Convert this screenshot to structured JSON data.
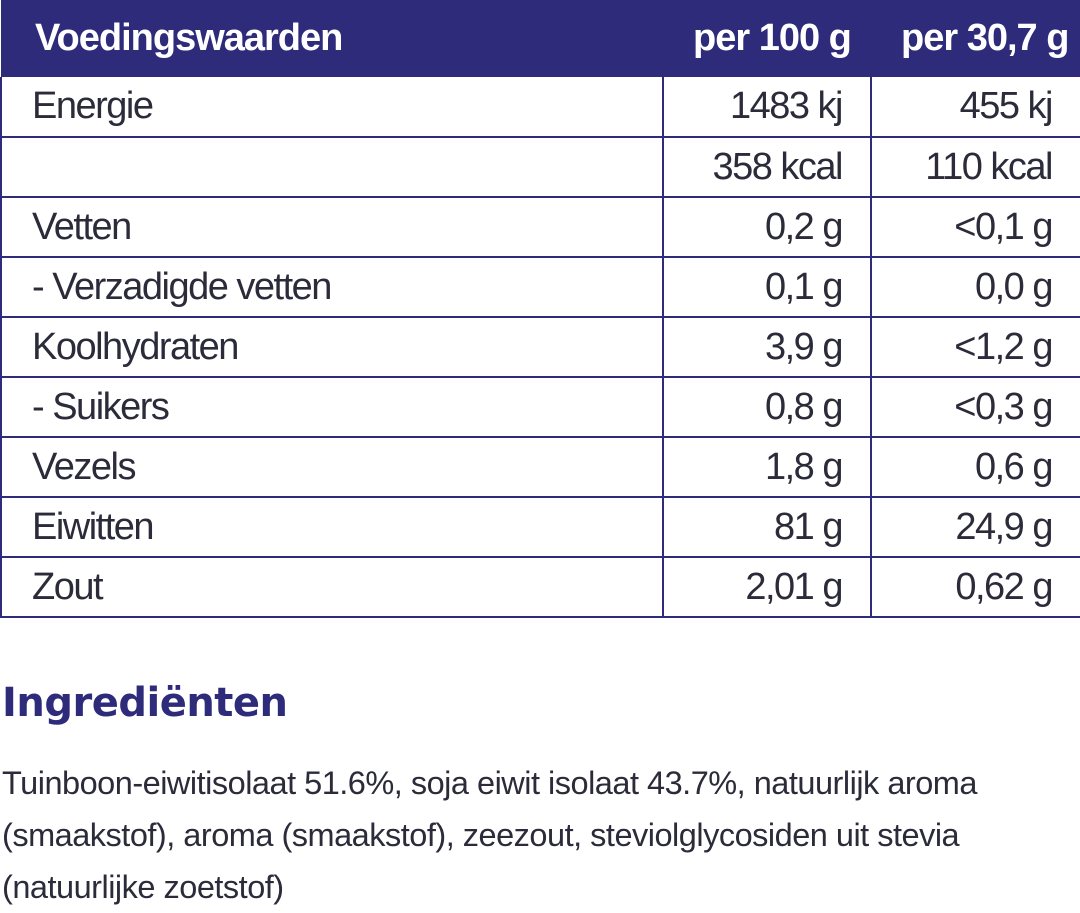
{
  "table": {
    "header": {
      "name": "Voedingswaarden",
      "col1": "per 100 g",
      "col2": "per 30,7 g"
    },
    "rows": [
      {
        "name": "Energie",
        "v1": "1483 kj",
        "v2": "455 kj"
      },
      {
        "name": "",
        "v1": "358 kcal",
        "v2": "110 kcal"
      },
      {
        "name": "Vetten",
        "v1": "0,2 g",
        "v2": "<0,1 g"
      },
      {
        "name": "- Verzadigde vetten",
        "v1": "0,1 g",
        "v2": "0,0 g"
      },
      {
        "name": "Koolhydraten",
        "v1": "3,9 g",
        "v2": "<1,2 g"
      },
      {
        "name": "- Suikers",
        "v1": "0,8 g",
        "v2": "<0,3 g"
      },
      {
        "name": "Vezels",
        "v1": "1,8 g",
        "v2": "0,6 g"
      },
      {
        "name": "Eiwitten",
        "v1": "81 g",
        "v2": "24,9 g"
      },
      {
        "name": "Zout",
        "v1": "2,01 g",
        "v2": "0,62 g"
      }
    ]
  },
  "ingredients": {
    "title": "Ingrediënten",
    "text": "Tuinboon-eiwitisolaat 51.6%, soja eiwit isolaat 43.7%, natuurlijk aroma (smaakstof), aroma (smaakstof), zeezout, steviolglycosiden uit stevia (natuurlijke zoetstof)"
  },
  "colors": {
    "accent": "#2e2b7a",
    "text": "#2b2b3a",
    "background": "#ffffff"
  }
}
